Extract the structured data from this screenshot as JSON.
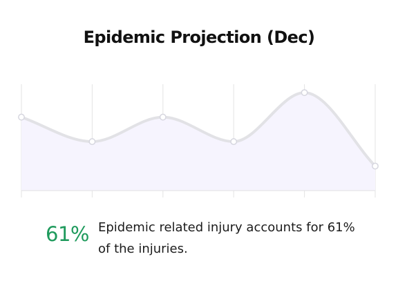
{
  "card": {
    "title": "Epidemic Projection (Dec)",
    "stat_value": "61%",
    "description": "Epidemic related injury accounts for 61% of the injuries."
  },
  "colors": {
    "line": "#e2e2e6",
    "fill": "#f6f4fe",
    "gridline": "#e3e3e3",
    "axis": "#e8e8ec",
    "point_fill": "#ffffff",
    "point_stroke": "#d6d6df",
    "stat": "#1e9a5c"
  },
  "chart_data": {
    "type": "area",
    "title": "Epidemic Projection (Dec)",
    "xlabel": "",
    "ylabel": "",
    "x": [
      1,
      2,
      3,
      4,
      5,
      6
    ],
    "values": [
      3.0,
      2.0,
      3.0,
      2.0,
      4.0,
      1.0
    ],
    "ylim": [
      0,
      4.4
    ],
    "grid": "vertical",
    "legend": "none",
    "smooth": true
  }
}
